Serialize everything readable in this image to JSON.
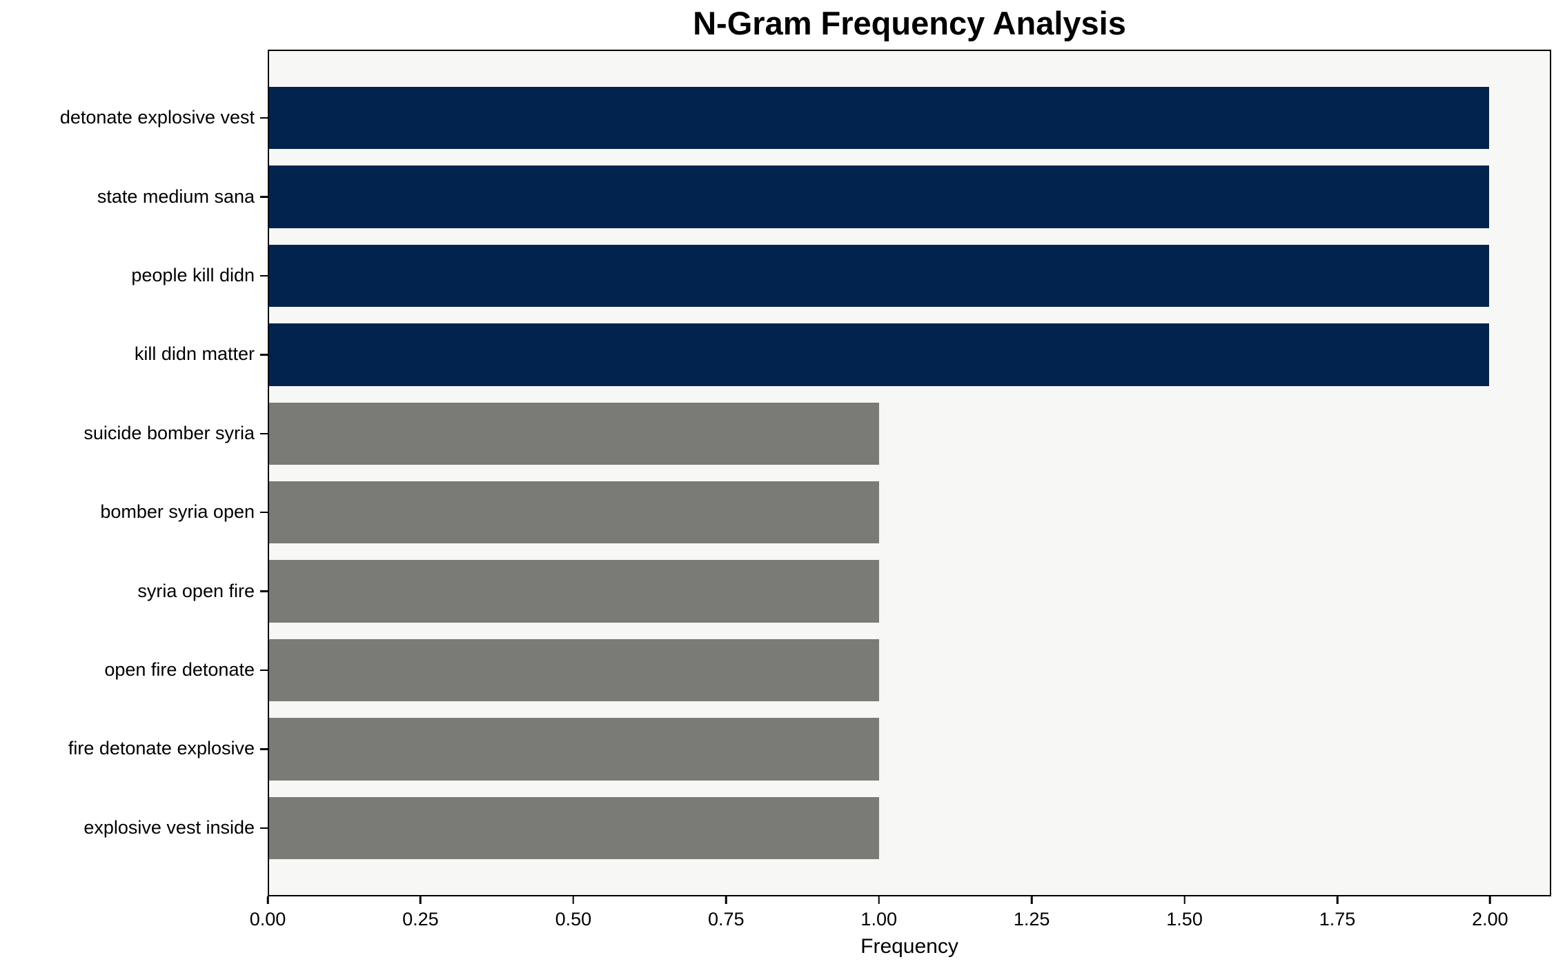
{
  "chart_data": {
    "type": "bar",
    "orientation": "horizontal",
    "title": "N-Gram Frequency Analysis",
    "xlabel": "Frequency",
    "ylabel": "",
    "categories": [
      "detonate explosive vest",
      "state medium sana",
      "people kill didn",
      "kill didn matter",
      "suicide bomber syria",
      "bomber syria open",
      "syria open fire",
      "open fire detonate",
      "fire detonate explosive",
      "explosive vest inside"
    ],
    "values": [
      2,
      2,
      2,
      2,
      1,
      1,
      1,
      1,
      1,
      1
    ],
    "bar_colors": [
      "#02234e",
      "#02234e",
      "#02234e",
      "#02234e",
      "#7a7a77",
      "#7a7a77",
      "#7a7a77",
      "#7a7a77",
      "#7a7a77",
      "#7a7a77"
    ],
    "xlim": [
      0,
      2.1
    ],
    "xticks": [
      0,
      0.25,
      0.5,
      0.75,
      1.0,
      1.25,
      1.5,
      1.75,
      2.0
    ],
    "xtick_labels": [
      "0.00",
      "0.25",
      "0.50",
      "0.75",
      "1.00",
      "1.25",
      "1.50",
      "1.75",
      "2.00"
    ],
    "grid": false,
    "legend": null,
    "colors": {
      "high_frequency_bar": "#02234e",
      "low_frequency_bar": "#7a7a77",
      "plot_background": "#f7f7f6",
      "figure_background": "#ffffff",
      "spine": "#000000",
      "text": "#000000"
    }
  }
}
